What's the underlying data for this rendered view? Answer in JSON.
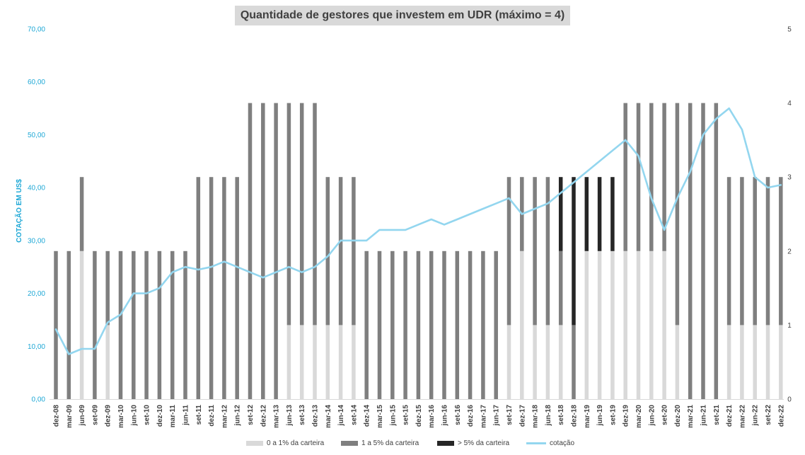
{
  "chart_data": {
    "type": "bar",
    "title": "Quantidade de gestores que investem em UDR (máximo = 4)",
    "ylabel": "COTAÇÃO EM US$",
    "ylim": [
      0,
      70
    ],
    "yticks": [
      "0,00",
      "10,00",
      "20,00",
      "30,00",
      "40,00",
      "50,00",
      "60,00",
      "70,00"
    ],
    "y2lim": [
      0,
      5
    ],
    "y2ticks": [
      "0",
      "1",
      "2",
      "3",
      "4",
      "5"
    ],
    "stacked": true,
    "grid": false,
    "legend_position": "bottom",
    "categories": [
      "dez-08",
      "mar-09",
      "jun-09",
      "set-09",
      "dez-09",
      "mar-10",
      "jun-10",
      "set-10",
      "dez-10",
      "mar-11",
      "jun-11",
      "set-11",
      "dez-11",
      "mar-12",
      "jun-12",
      "set-12",
      "dez-12",
      "mar-13",
      "jun-13",
      "set-13",
      "dez-13",
      "mar-14",
      "jun-14",
      "set-14",
      "dez-14",
      "mar-15",
      "jun-15",
      "set-15",
      "dez-15",
      "mar-16",
      "jun-16",
      "set-16",
      "dez-16",
      "mar-17",
      "jun-17",
      "set-17",
      "dez-17",
      "mar-18",
      "jun-18",
      "set-18",
      "dez-18",
      "mar-19",
      "jun-19",
      "set-19",
      "dez-19",
      "mar-20",
      "jun-20",
      "set-20",
      "dez-20",
      "mar-21",
      "jun-21",
      "set-21",
      "dez-21",
      "mar-22",
      "jun-22",
      "set-22",
      "dez-22"
    ],
    "series": [
      {
        "name": "0 a 1% da carteira",
        "color": "#d9d9d9",
        "axis": "right",
        "values": [
          0,
          0,
          2,
          0,
          1,
          0,
          0,
          0,
          0,
          0,
          0,
          0,
          0,
          0,
          0,
          0,
          0,
          0,
          1,
          1,
          1,
          1,
          1,
          1,
          0,
          0,
          0,
          0,
          0,
          0,
          0,
          0,
          0,
          0,
          0,
          1,
          2,
          1,
          1,
          1,
          0,
          2,
          2,
          2,
          2,
          2,
          2,
          2,
          1,
          0,
          0,
          0,
          1,
          1,
          1,
          1,
          1
        ]
      },
      {
        "name": "1 a 5% da carteira",
        "color": "#7f7f7f",
        "axis": "right",
        "values": [
          2,
          2,
          1,
          2,
          1,
          2,
          2,
          2,
          2,
          2,
          2,
          3,
          3,
          3,
          3,
          4,
          4,
          4,
          3,
          3,
          3,
          2,
          2,
          2,
          2,
          2,
          2,
          2,
          2,
          2,
          2,
          2,
          2,
          2,
          2,
          2,
          1,
          2,
          2,
          1,
          1,
          0,
          0,
          0,
          2,
          2,
          2,
          2,
          3,
          4,
          4,
          4,
          2,
          2,
          2,
          2,
          2
        ]
      },
      {
        "name": "> 5% da carteira",
        "color": "#262626",
        "axis": "right",
        "values": [
          0,
          0,
          0,
          0,
          0,
          0,
          0,
          0,
          0,
          0,
          0,
          0,
          0,
          0,
          0,
          0,
          0,
          0,
          0,
          0,
          0,
          0,
          0,
          0,
          0,
          0,
          0,
          0,
          0,
          0,
          0,
          0,
          0,
          0,
          0,
          0,
          0,
          0,
          0,
          1,
          2,
          1,
          1,
          1,
          0,
          0,
          0,
          0,
          0,
          0,
          0,
          0,
          0,
          0,
          0,
          0,
          0
        ]
      },
      {
        "name": "cotação",
        "color": "#93d6ef",
        "type": "line",
        "axis": "left",
        "values": [
          13.2,
          8.5,
          9.5,
          9.5,
          14.5,
          16,
          20,
          20,
          21,
          24,
          25,
          24.5,
          25,
          26,
          25,
          24,
          23,
          24,
          25,
          24,
          25,
          27,
          30,
          30,
          30,
          32,
          32,
          32,
          33,
          34,
          33,
          34,
          35,
          36,
          37,
          38,
          35,
          36,
          37,
          39,
          41,
          43,
          45,
          47,
          49,
          46,
          38,
          32,
          38,
          43,
          50,
          53,
          55,
          51,
          42,
          40,
          40.5
        ]
      }
    ]
  },
  "legend": {
    "items": [
      {
        "label": "0 a 1% da carteira"
      },
      {
        "label": "1 a 5% da carteira"
      },
      {
        "label": "> 5% da carteira"
      },
      {
        "label": "cotação"
      }
    ]
  }
}
